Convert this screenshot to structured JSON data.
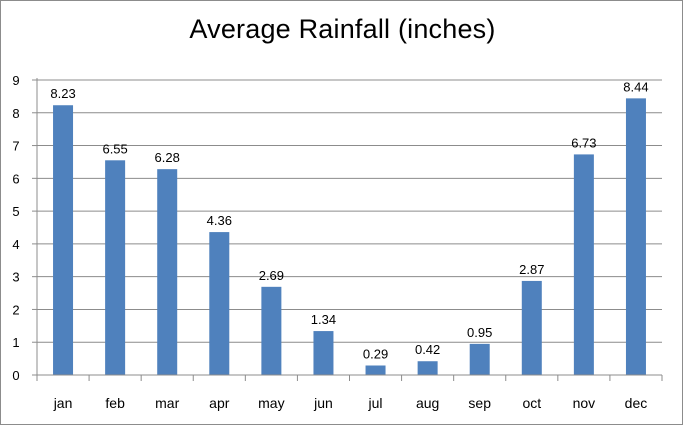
{
  "chart_data": {
    "type": "bar",
    "title": "Average Rainfall (inches)",
    "categories": [
      "jan",
      "feb",
      "mar",
      "apr",
      "may",
      "jun",
      "jul",
      "aug",
      "sep",
      "oct",
      "nov",
      "dec"
    ],
    "values": [
      8.23,
      6.55,
      6.28,
      4.36,
      2.69,
      1.34,
      0.29,
      0.42,
      0.95,
      2.87,
      6.73,
      8.44
    ],
    "data_labels": [
      "8.23",
      "6.55",
      "6.28",
      "4.36",
      "2.69",
      "1.34",
      "0.29",
      "0.42",
      "0.95",
      "2.87",
      "6.73",
      "8.44"
    ],
    "xlabel": "",
    "ylabel": "",
    "ylim": [
      0,
      9
    ],
    "yticks": [
      0,
      1,
      2,
      3,
      4,
      5,
      6,
      7,
      8,
      9
    ],
    "grid": true,
    "legend": "none",
    "bar_color": "#4f81bd",
    "grid_color": "#8c8c8c"
  }
}
